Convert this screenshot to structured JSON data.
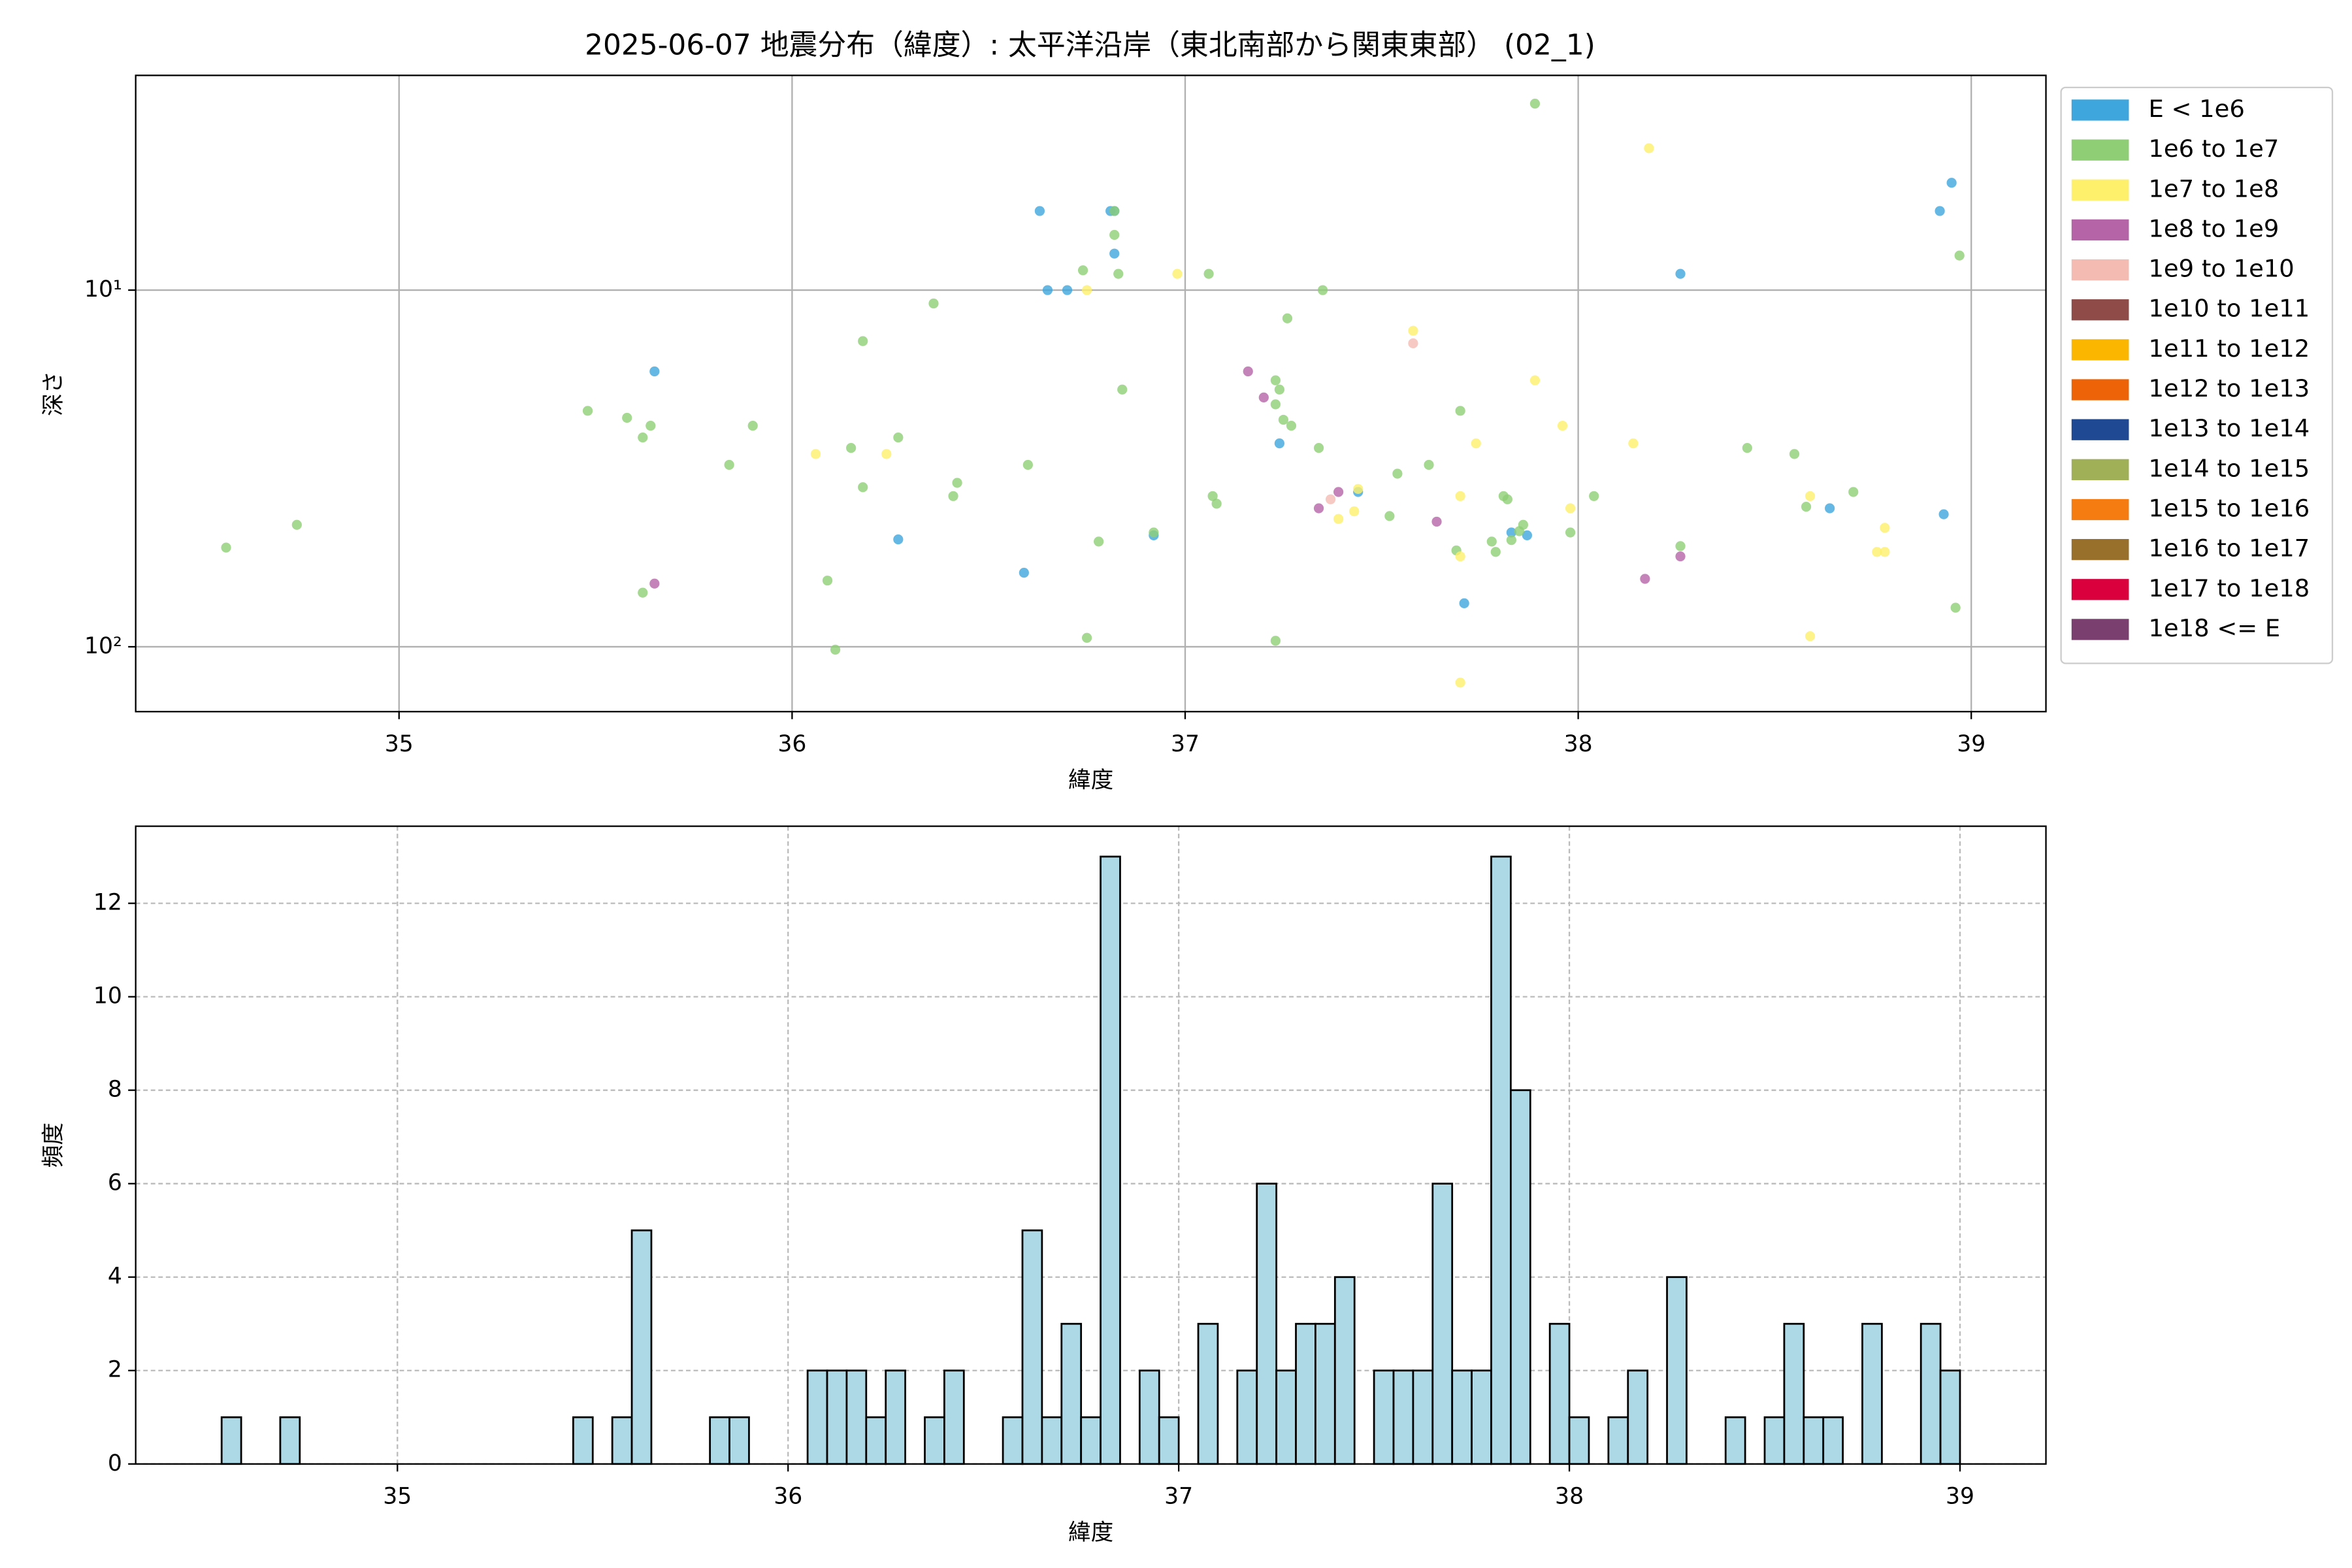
{
  "chart_data": [
    {
      "type": "scatter",
      "title": "2025-06-07 地震分布（緯度）: 太平洋沿岸（東北南部から関東東部） (02_1)",
      "x_label": "緯度",
      "y_label": "深さ",
      "xlim": [
        34.33,
        39.19
      ],
      "xticks": [
        35,
        36,
        37,
        38,
        39
      ],
      "ylim": [
        2.5,
        152
      ],
      "y_scale": "log",
      "y_inverted": true,
      "yticks": [
        {
          "value": 10,
          "label": "10¹"
        },
        {
          "value": 100,
          "label": "10²"
        }
      ],
      "grid": true,
      "grid_style": "solid",
      "legend": "outside-upper-right",
      "series": [
        {
          "name": "E < 1e6",
          "color": "#3ea6dd",
          "x": [
            35.65,
            36.27,
            36.59,
            36.63,
            36.65,
            36.7,
            36.81,
            36.82,
            36.82,
            36.92,
            37.24,
            37.44,
            37.71,
            37.83,
            37.87,
            38.26,
            38.64,
            38.92,
            38.95,
            38.93
          ],
          "values": [
            16.9,
            50,
            62,
            6.0,
            10,
            10,
            6.0,
            6.0,
            7.9,
            48.7,
            26.9,
            36.8,
            75.5,
            47.8,
            48.7,
            9.0,
            40.9,
            6.0,
            5.0,
            42.5
          ]
        },
        {
          "name": "1e6 to 1e7",
          "color": "#8fce75",
          "x": [
            34.56,
            34.74,
            35.48,
            35.58,
            35.62,
            35.64,
            35.62,
            35.84,
            35.9,
            36.09,
            36.11,
            36.15,
            36.18,
            36.18,
            36.27,
            36.36,
            36.41,
            36.42,
            36.6,
            36.74,
            36.75,
            36.78,
            36.82,
            36.82,
            36.83,
            36.84,
            36.92,
            37.06,
            37.07,
            37.08,
            37.23,
            37.23,
            37.24,
            37.25,
            37.26,
            37.27,
            37.23,
            37.34,
            37.35,
            37.52,
            37.54,
            37.62,
            37.7,
            37.69,
            37.81,
            37.82,
            37.78,
            37.79,
            37.83,
            37.85,
            37.86,
            37.89,
            37.98,
            38.04,
            38.26,
            38.43,
            38.55,
            38.58,
            38.7,
            38.96,
            38.97
          ],
          "values": [
            52.7,
            45.5,
            21.8,
            22.8,
            25.9,
            24.0,
            70.5,
            30.9,
            24.0,
            65.2,
            101.9,
            27.7,
            13.9,
            35.7,
            25.9,
            10.9,
            37.8,
            34.7,
            30.9,
            8.8,
            94.4,
            50.7,
            6.0,
            7.0,
            9.0,
            19.0,
            47.8,
            9.0,
            37.8,
            39.7,
            17.9,
            20.9,
            19.0,
            23.1,
            12.0,
            24.0,
            96.2,
            27.7,
            10,
            43.0,
            32.7,
            30.9,
            21.8,
            53.7,
            37.8,
            38.6,
            50.7,
            54.2,
            50.2,
            47.4,
            45.5,
            3.0,
            47.8,
            37.8,
            52.2,
            27.7,
            28.8,
            40.5,
            36.8,
            77.7,
            8.0
          ]
        },
        {
          "name": "1e7 to 1e8",
          "color": "#fef06a",
          "x": [
            36.06,
            36.24,
            36.75,
            36.98,
            37.39,
            37.44,
            37.43,
            37.58,
            37.7,
            37.7,
            37.7,
            37.74,
            37.89,
            37.96,
            37.98,
            38.14,
            38.18,
            38.59,
            38.59,
            38.76,
            38.78,
            38.78
          ],
          "values": [
            28.8,
            28.8,
            10,
            9.0,
            43.8,
            36.1,
            41.7,
            13.0,
            37.8,
            55.8,
            126,
            26.9,
            17.9,
            24.0,
            40.9,
            26.9,
            4.0,
            37.8,
            93.4,
            54.2,
            54.2,
            46.4
          ]
        },
        {
          "name": "1e8 to 1e9",
          "color": "#b565a7",
          "x": [
            35.65,
            37.16,
            37.2,
            37.34,
            37.39,
            37.64,
            38.17,
            38.26
          ],
          "values": [
            66.5,
            16.9,
            20.0,
            40.9,
            36.8,
            44.6,
            64.5,
            55.8
          ]
        },
        {
          "name": "1e9 to 1e10",
          "color": "#f4bbb3",
          "x": [
            37.37,
            37.58
          ],
          "values": [
            38.6,
            14.1
          ]
        },
        {
          "name": "1e10 to 1e11",
          "color": "#8e4b47",
          "x": [],
          "values": []
        },
        {
          "name": "1e11 to 1e12",
          "color": "#fbb600",
          "x": [],
          "values": []
        },
        {
          "name": "1e12 to 1e13",
          "color": "#ec6407",
          "x": [],
          "values": []
        },
        {
          "name": "1e13 to 1e14",
          "color": "#1f4a93",
          "x": [],
          "values": []
        },
        {
          "name": "1e14 to 1e15",
          "color": "#a0b057",
          "x": [],
          "values": []
        },
        {
          "name": "1e15 to 1e16",
          "color": "#f47c11",
          "x": [],
          "values": []
        },
        {
          "name": "1e16 to 1e17",
          "color": "#98702c",
          "x": [],
          "values": []
        },
        {
          "name": "1e17 to 1e18",
          "color": "#d9003d",
          "x": [],
          "values": []
        },
        {
          "name": "1e18 <= E",
          "color": "#7a3f6e",
          "x": [],
          "values": []
        }
      ]
    },
    {
      "type": "histogram",
      "x_label": "緯度",
      "y_label": "頻度",
      "xlim": [
        34.33,
        39.22
      ],
      "xticks": [
        35,
        36,
        37,
        38,
        39
      ],
      "ylim": [
        0,
        13.65
      ],
      "yticks": [
        0,
        2,
        4,
        6,
        8,
        10,
        12
      ],
      "grid": true,
      "grid_style": "dashed",
      "color": "#add8e6",
      "edgecolor": "#000000",
      "bins": [
        34.55,
        34.6,
        34.65,
        34.7,
        34.75,
        34.8,
        34.85,
        34.9,
        34.95,
        35.0,
        35.05,
        35.1,
        35.15,
        35.2,
        35.25,
        35.3,
        35.35,
        35.4,
        35.45,
        35.5,
        35.55,
        35.6,
        35.65,
        35.7,
        35.75,
        35.8,
        35.85,
        35.9,
        35.95,
        36.0,
        36.05,
        36.1,
        36.15,
        36.2,
        36.25,
        36.3,
        36.35,
        36.4,
        36.45,
        36.5,
        36.55,
        36.6,
        36.65,
        36.7,
        36.75,
        36.8,
        36.85,
        36.9,
        36.95,
        37.0,
        37.05,
        37.1,
        37.15,
        37.2,
        37.25,
        37.3,
        37.35,
        37.4,
        37.45,
        37.5,
        37.55,
        37.6,
        37.65,
        37.7,
        37.75,
        37.8,
        37.85,
        37.9,
        37.95,
        38.0,
        38.05,
        38.1,
        38.15,
        38.2,
        38.25,
        38.3,
        38.35,
        38.4,
        38.45,
        38.5,
        38.55,
        38.6,
        38.65,
        38.7,
        38.75,
        38.8,
        38.85,
        38.9,
        38.95,
        39.0
      ],
      "values": [
        1,
        0,
        0,
        1,
        0,
        0,
        0,
        0,
        0,
        0,
        0,
        0,
        0,
        0,
        0,
        0,
        0,
        0,
        1,
        0,
        1,
        5,
        0,
        0,
        0,
        1,
        1,
        0,
        0,
        0,
        2,
        2,
        2,
        1,
        2,
        0,
        1,
        2,
        0,
        0,
        1,
        5,
        1,
        3,
        1,
        13,
        0,
        2,
        1,
        0,
        3,
        0,
        2,
        6,
        2,
        3,
        3,
        4,
        0,
        2,
        2,
        2,
        6,
        2,
        2,
        13,
        8,
        0,
        3,
        1,
        0,
        1,
        2,
        0,
        4,
        0,
        0,
        1,
        0,
        1,
        3,
        1,
        1,
        0,
        3,
        0,
        0,
        3,
        2
      ]
    }
  ]
}
